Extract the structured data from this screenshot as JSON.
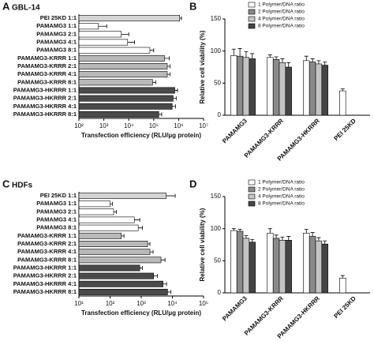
{
  "chart_data": [
    {
      "type": "hbar",
      "panel_label": "A",
      "subtitle": "GBL-14",
      "x_label": "Transfection efficiency (RLU/μg protein)",
      "xscale": "log",
      "categories": [
        "PEI 25KD 1:1",
        "PAMAMG3 1:1",
        "PAMAMG3 2:1",
        "PAMAMG3 4:1",
        "PAMAMG3 8:1",
        "PAMAMG3-KRRR 1:1",
        "PAMAMG3-KRRR 2:1",
        "PAMAMG3-KRRR 4:1",
        "PAMAMG3-KRRR 8:1",
        "PAMAMG3-HKRRR 1:1",
        "PAMAMG3-HKRRR 2:1",
        "PAMAMG3-HKRRR 4:1",
        "PAMAMG3-HKRRR 8:1"
      ],
      "values": [
        1100000,
        600,
        5000,
        9000,
        70000,
        270000,
        350000,
        350000,
        90000,
        700000,
        600000,
        550000,
        160000
      ],
      "errors": [
        200000,
        700,
        5000,
        8000,
        30000,
        150000,
        100000,
        100000,
        30000,
        200000,
        200000,
        200000,
        50000
      ],
      "colors": [
        "#d4d4d4",
        "#ffffff",
        "#ffffff",
        "#ffffff",
        "#ffffff",
        "#b8b8b8",
        "#b8b8b8",
        "#b8b8b8",
        "#b8b8b8",
        "#4a4a4a",
        "#4a4a4a",
        "#4a4a4a",
        "#4a4a4a"
      ],
      "xlim": [
        100,
        10000000
      ],
      "xticks": [
        {
          "value": 100,
          "label": "10²"
        },
        {
          "value": 1000,
          "label": "10³"
        },
        {
          "value": 10000,
          "label": "10⁴"
        },
        {
          "value": 100000,
          "label": "10⁵"
        },
        {
          "value": 1000000,
          "label": "10⁶"
        },
        {
          "value": 10000000,
          "label": "10⁷"
        }
      ]
    },
    {
      "type": "grouped_bar",
      "panel_label": "B",
      "y_label": "Relative cell viability (%)",
      "categories": [
        "PAMAMG3",
        "PAMAMG3-KRRR",
        "PAMAMG3-HKRRR",
        "PEI 25KD"
      ],
      "series": [
        {
          "name": "1 Polymer/DNA ratio",
          "color": "#ffffff",
          "values": [
            93,
            90,
            85,
            38
          ],
          "errors": [
            10,
            4,
            7,
            3
          ]
        },
        {
          "name": "2 Polymer/DNA ratio",
          "color": "#8a8a8a",
          "values": [
            92,
            87,
            83,
            null
          ],
          "errors": [
            12,
            4,
            5,
            null
          ]
        },
        {
          "name": "4 Polymer/DNA ratio",
          "color": "#c4c4c4",
          "values": [
            90,
            82,
            80,
            null
          ],
          "errors": [
            9,
            6,
            5,
            null
          ]
        },
        {
          "name": "8 Polymer/DNA ratio",
          "color": "#454545",
          "values": [
            88,
            75,
            78,
            null
          ],
          "errors": [
            8,
            7,
            5,
            null
          ]
        }
      ],
      "ylim": [
        0,
        150
      ],
      "yticks": [
        0,
        50,
        100,
        150
      ]
    },
    {
      "type": "hbar",
      "panel_label": "C",
      "subtitle": "HDFs",
      "x_label": "Transfection efficiency (RLU/μg protein)",
      "xscale": "log",
      "categories": [
        "PEI 25KD 1:1",
        "PAMAMG3 1:1",
        "PAMAMG3 2:1",
        "PAMAMG3 4:1",
        "PAMAMG3 8:1",
        "PAMAMG3-KRRR 1:1",
        "PAMAMG3-KRRR 2:1",
        "PAMAMG3-KRRR 4:1",
        "PAMAMG3-KRRR 8:1",
        "PAMAMG3-HKRRR 1:1",
        "PAMAMG3-HKRRR 2:1",
        "PAMAMG3-HKRRR 4:1",
        "PAMAMG3-HKRRR 8:1"
      ],
      "values": [
        6300,
        100,
        130,
        600,
        800,
        230,
        1600,
        1900,
        4300,
        900,
        2500,
        5000,
        7000
      ],
      "errors": [
        6000,
        20,
        30,
        300,
        300,
        50,
        300,
        500,
        1500,
        200,
        800,
        1500,
        2000
      ],
      "colors": [
        "#d4d4d4",
        "#ffffff",
        "#ffffff",
        "#ffffff",
        "#ffffff",
        "#b8b8b8",
        "#b8b8b8",
        "#b8b8b8",
        "#b8b8b8",
        "#4a4a4a",
        "#4a4a4a",
        "#4a4a4a",
        "#4a4a4a"
      ],
      "xlim": [
        10,
        100000
      ],
      "xticks": [
        {
          "value": 10,
          "label": "10¹"
        },
        {
          "value": 100,
          "label": "10²"
        },
        {
          "value": 1000,
          "label": "10³"
        },
        {
          "value": 10000,
          "label": "10⁴"
        },
        {
          "value": 100000,
          "label": "10⁵"
        }
      ]
    },
    {
      "type": "grouped_bar",
      "panel_label": "D",
      "y_label": "Relative cell viability (%)",
      "categories": [
        "PAMAMG3",
        "PAMAMG3-KRRR",
        "PAMAMG3-HKRRR",
        "PEI 25KD"
      ],
      "series": [
        {
          "name": "1 Polymer/DNA ratio",
          "color": "#ffffff",
          "values": [
            97,
            93,
            93,
            23
          ],
          "errors": [
            3,
            7,
            6,
            4
          ]
        },
        {
          "name": "2 Polymer/DNA ratio",
          "color": "#8a8a8a",
          "values": [
            96,
            85,
            88,
            null
          ],
          "errors": [
            3,
            5,
            6,
            null
          ]
        },
        {
          "name": "4 Polymer/DNA ratio",
          "color": "#c4c4c4",
          "values": [
            85,
            82,
            81,
            null
          ],
          "errors": [
            4,
            5,
            5,
            null
          ]
        },
        {
          "name": "8 Polymer/DNA ratio",
          "color": "#454545",
          "values": [
            79,
            82,
            76,
            null
          ],
          "errors": [
            4,
            6,
            5,
            null
          ]
        }
      ],
      "ylim": [
        0,
        150
      ],
      "yticks": [
        0,
        50,
        100,
        150
      ]
    }
  ]
}
